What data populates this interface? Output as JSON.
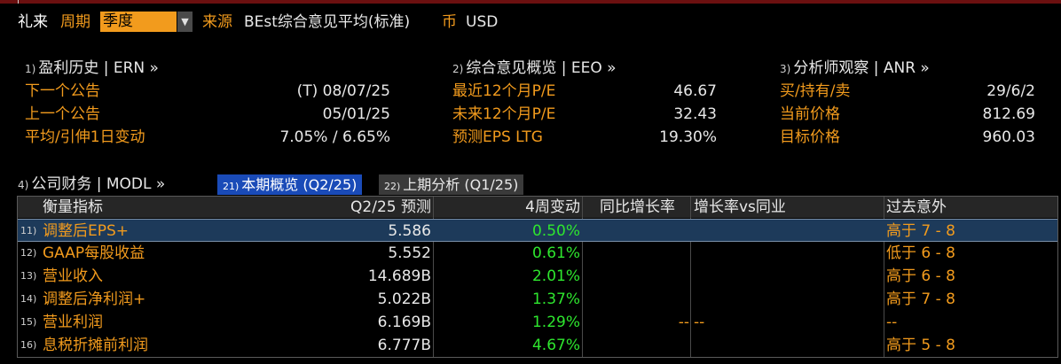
{
  "header": {
    "company": "礼来",
    "period_label": "周期",
    "period_value": "季度",
    "source_label": "来源",
    "source_value": "BEst综合意见平均(标准)",
    "currency_label": "币",
    "currency_value": "USD"
  },
  "erns": {
    "num": "1)",
    "title": "盈利历史 | ERN »",
    "rows": [
      {
        "label": "下一个公告",
        "value": "(T)  08/07/25"
      },
      {
        "label": "上一个公告",
        "value": "05/01/25"
      },
      {
        "label": "平均/引伸1日变动",
        "value": "7.05% / 6.65%"
      }
    ]
  },
  "eeo": {
    "num": "2)",
    "title": "综合意见概览 | EEO »",
    "rows": [
      {
        "label": "最近12个月P/E",
        "value": "46.67"
      },
      {
        "label": "未来12个月P/E",
        "value": "32.43"
      },
      {
        "label": "预测EPS LTG",
        "value": "19.30%"
      }
    ]
  },
  "anr": {
    "num": "3)",
    "title": "分析师观察 | ANR »",
    "rows": [
      {
        "label": "买/持有/卖",
        "value": "29/6/2"
      },
      {
        "label": "当前价格",
        "value": "812.69"
      },
      {
        "label": "目标价格",
        "value": "960.03"
      }
    ]
  },
  "modl": {
    "num": "4)",
    "title": "公司财务 | MODL »"
  },
  "tabs": [
    {
      "num": "21)",
      "label": "本期概览 (Q2/25)"
    },
    {
      "num": "22)",
      "label": "上期分析 (Q1/25)"
    }
  ],
  "table": {
    "columns": [
      "衡量指标",
      "Q2/25 预测",
      "4周变动",
      "同比增长率",
      "增长率vs同业",
      "过去意外"
    ],
    "rows": [
      {
        "num": "11)",
        "metric": "调整后EPS+",
        "estimate": "5.586",
        "change": "0.50%",
        "yoy": "",
        "vs_industry": "",
        "surprise": "高于 7 - 8"
      },
      {
        "num": "12)",
        "metric": "GAAP每股收益",
        "estimate": "5.552",
        "change": "0.61%",
        "yoy": "",
        "vs_industry": "",
        "surprise": "低于 6 - 8"
      },
      {
        "num": "13)",
        "metric": "营业收入",
        "estimate": "14.689B",
        "change": "2.01%",
        "yoy": "",
        "vs_industry": "",
        "surprise": "高于 6 - 8"
      },
      {
        "num": "14)",
        "metric": "调整后净利润+",
        "estimate": "5.022B",
        "change": "1.37%",
        "yoy": "",
        "vs_industry": "",
        "surprise": "高于 7 - 8"
      },
      {
        "num": "15)",
        "metric": "营业利润",
        "estimate": "6.169B",
        "change": "1.29%",
        "yoy": "--",
        "vs_industry": "--",
        "surprise": "--"
      },
      {
        "num": "16)",
        "metric": "息税折摊前利润",
        "estimate": "6.777B",
        "change": "4.67%",
        "yoy": "",
        "vs_industry": "",
        "surprise": "高于 5 - 8"
      }
    ]
  },
  "colors": {
    "accent": "#f29b1d",
    "positive": "#2ee62e",
    "tab_active": "#1a4bb8",
    "selected_row": "#1d3a5a",
    "company": "#ffffff"
  }
}
